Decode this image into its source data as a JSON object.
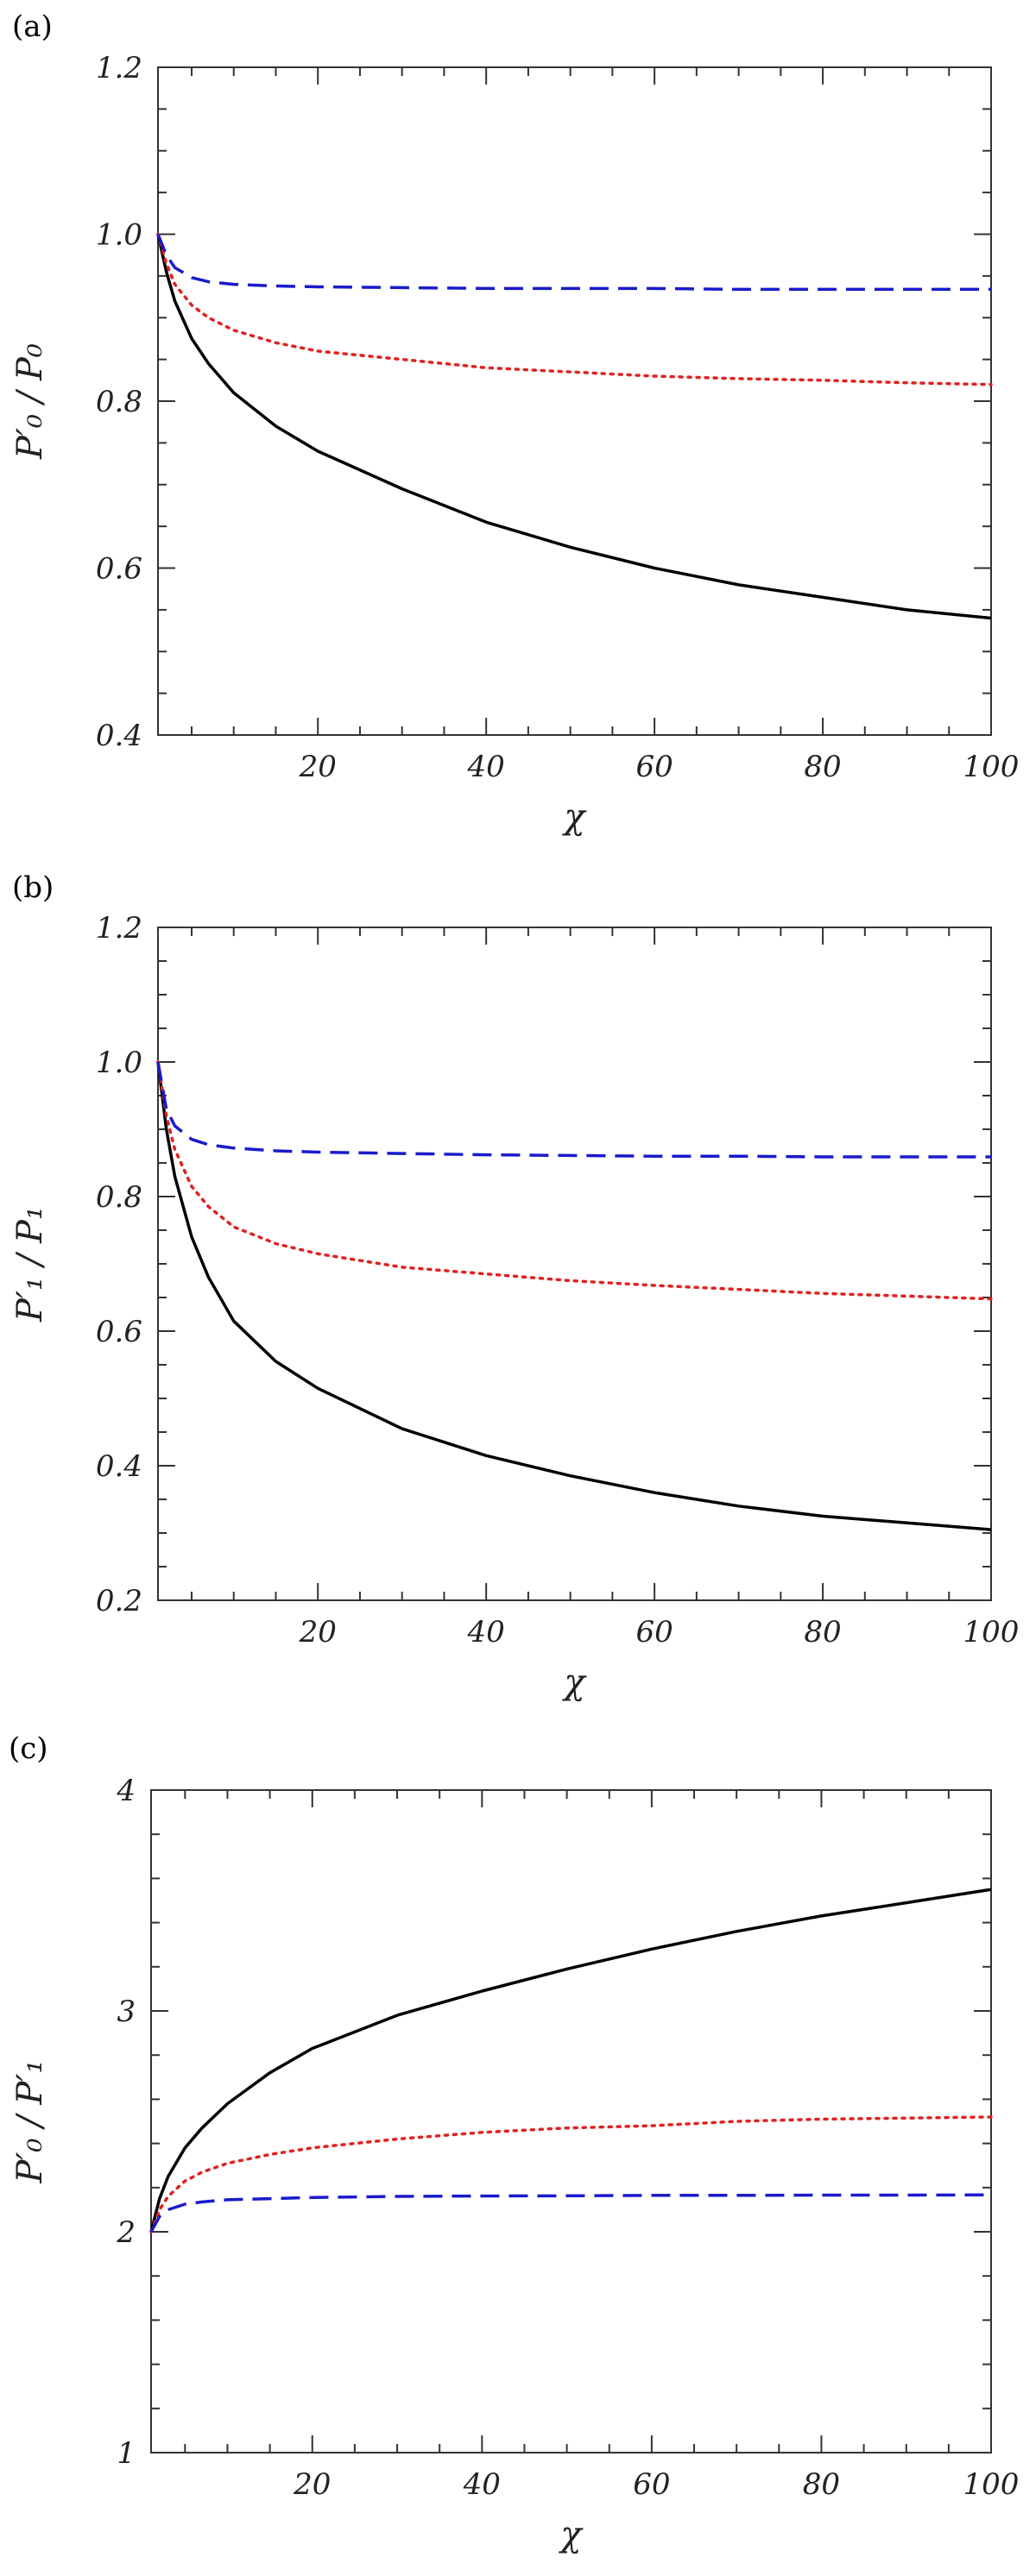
{
  "chart_data": [
    {
      "type": "line",
      "panel_label": "(a)",
      "xlabel": "χ",
      "ylabel": "P′₀ / P₀",
      "xlim": [
        1,
        100
      ],
      "ylim": [
        0.4,
        1.2
      ],
      "x_ticks": [
        20,
        40,
        60,
        80,
        100
      ],
      "x_tick_labels": [
        "20",
        "40",
        "60",
        "80",
        "100"
      ],
      "y_ticks": [
        0.4,
        0.6,
        0.8,
        1.0,
        1.2
      ],
      "y_tick_labels": [
        "0.4",
        "0.6",
        "0.8",
        "1.0",
        "1.2"
      ],
      "x": [
        1,
        2,
        3,
        5,
        7,
        10,
        15,
        20,
        30,
        40,
        50,
        60,
        70,
        80,
        90,
        100
      ],
      "series": [
        {
          "color": "#000000",
          "style": "solid",
          "values": [
            1.0,
            0.955,
            0.92,
            0.875,
            0.845,
            0.81,
            0.77,
            0.74,
            0.695,
            0.655,
            0.625,
            0.6,
            0.58,
            0.565,
            0.55,
            0.54
          ]
        },
        {
          "color": "#e02020",
          "style": "dotted",
          "values": [
            1.0,
            0.965,
            0.94,
            0.915,
            0.9,
            0.885,
            0.87,
            0.86,
            0.85,
            0.84,
            0.835,
            0.83,
            0.827,
            0.825,
            0.822,
            0.82
          ]
        },
        {
          "color": "#1a1acc",
          "style": "dashed",
          "values": [
            1.0,
            0.975,
            0.96,
            0.948,
            0.943,
            0.94,
            0.938,
            0.937,
            0.936,
            0.935,
            0.935,
            0.935,
            0.934,
            0.934,
            0.934,
            0.934
          ]
        }
      ]
    },
    {
      "type": "line",
      "panel_label": "(b)",
      "xlabel": "χ",
      "ylabel": "P′₁ / P₁",
      "xlim": [
        1,
        100
      ],
      "ylim": [
        0.2,
        1.2
      ],
      "x_ticks": [
        20,
        40,
        60,
        80,
        100
      ],
      "x_tick_labels": [
        "20",
        "40",
        "60",
        "80",
        "100"
      ],
      "y_ticks": [
        0.2,
        0.4,
        0.6,
        0.8,
        1.0,
        1.2
      ],
      "y_tick_labels": [
        "0.2",
        "0.4",
        "0.6",
        "0.8",
        "1.0",
        "1.2"
      ],
      "x": [
        1,
        2,
        3,
        5,
        7,
        10,
        15,
        20,
        30,
        40,
        50,
        60,
        70,
        80,
        90,
        100
      ],
      "series": [
        {
          "color": "#000000",
          "style": "solid",
          "values": [
            1.0,
            0.9,
            0.83,
            0.74,
            0.68,
            0.615,
            0.555,
            0.515,
            0.455,
            0.415,
            0.385,
            0.36,
            0.34,
            0.325,
            0.315,
            0.305
          ]
        },
        {
          "color": "#e02020",
          "style": "dotted",
          "values": [
            1.0,
            0.92,
            0.87,
            0.815,
            0.785,
            0.755,
            0.73,
            0.715,
            0.695,
            0.685,
            0.675,
            0.668,
            0.662,
            0.656,
            0.652,
            0.648
          ]
        },
        {
          "color": "#1a1acc",
          "style": "dashed",
          "values": [
            1.0,
            0.93,
            0.905,
            0.885,
            0.877,
            0.872,
            0.868,
            0.866,
            0.864,
            0.862,
            0.861,
            0.86,
            0.86,
            0.859,
            0.859,
            0.859
          ]
        }
      ]
    },
    {
      "type": "line",
      "panel_label": "(c)",
      "xlabel": "χ",
      "ylabel": "P′₀ / P′₁",
      "xlim": [
        1,
        100
      ],
      "ylim": [
        1,
        4
      ],
      "x_ticks": [
        20,
        40,
        60,
        80,
        100
      ],
      "x_tick_labels": [
        "20",
        "40",
        "60",
        "80",
        "100"
      ],
      "y_ticks": [
        1,
        2,
        3,
        4
      ],
      "y_tick_labels": [
        "1",
        "2",
        "3",
        "4"
      ],
      "x": [
        1,
        2,
        3,
        5,
        7,
        10,
        15,
        20,
        30,
        40,
        50,
        60,
        70,
        80,
        90,
        100
      ],
      "series": [
        {
          "color": "#000000",
          "style": "solid",
          "values": [
            2.0,
            2.15,
            2.25,
            2.38,
            2.47,
            2.58,
            2.72,
            2.83,
            2.98,
            3.09,
            3.19,
            3.28,
            3.36,
            3.43,
            3.49,
            3.55
          ]
        },
        {
          "color": "#e02020",
          "style": "dotted",
          "values": [
            2.0,
            2.1,
            2.16,
            2.23,
            2.27,
            2.31,
            2.35,
            2.38,
            2.42,
            2.45,
            2.47,
            2.48,
            2.5,
            2.51,
            2.515,
            2.52
          ]
        },
        {
          "color": "#1a1acc",
          "style": "dashed",
          "values": [
            2.0,
            2.07,
            2.1,
            2.125,
            2.135,
            2.145,
            2.15,
            2.155,
            2.16,
            2.162,
            2.163,
            2.165,
            2.165,
            2.166,
            2.166,
            2.167
          ]
        }
      ]
    }
  ]
}
